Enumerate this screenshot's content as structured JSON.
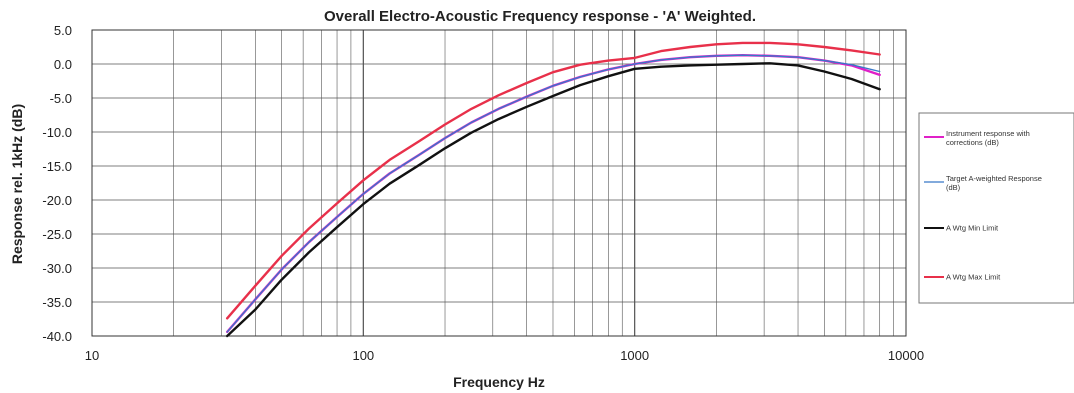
{
  "chart_data": {
    "type": "line",
    "title": "Overall Electro-Acoustic Frequency response - 'A' Weighted.",
    "xlabel": "Frequency Hz",
    "ylabel": "Response rel. 1kHz (dB)",
    "x_scale": "log",
    "xlim": [
      10,
      10000
    ],
    "ylim": [
      -40,
      5
    ],
    "x_ticks": [
      10,
      100,
      1000,
      10000
    ],
    "x_tick_labels": [
      "10",
      "100",
      "1000",
      "10000"
    ],
    "y_ticks": [
      5,
      0,
      -5,
      -10,
      -15,
      -20,
      -25,
      -30,
      -35,
      -40
    ],
    "y_tick_labels": [
      "5.0",
      "0.0",
      "-5.0",
      "-10.0",
      "-15.0",
      "-20.0",
      "-25.0",
      "-30.0",
      "-35.0",
      "-40.0"
    ],
    "grid": true,
    "legend_position": "right",
    "x": [
      31.5,
      40,
      50,
      63,
      80,
      100,
      125,
      160,
      200,
      250,
      315,
      400,
      500,
      630,
      800,
      1000,
      1250,
      1600,
      2000,
      2500,
      3150,
      4000,
      5000,
      6300,
      8000
    ],
    "series": [
      {
        "name": "Instrument response with corrections (dB)",
        "color": "#e020c8",
        "values": [
          -39.4,
          -34.6,
          -30.2,
          -26.2,
          -22.5,
          -19.1,
          -16.1,
          -13.4,
          -10.9,
          -8.6,
          -6.6,
          -4.8,
          -3.2,
          -1.9,
          -0.8,
          0.0,
          0.6,
          1.0,
          1.2,
          1.3,
          1.2,
          1.0,
          0.5,
          -0.2,
          -1.6
        ]
      },
      {
        "name": "Target A-weighted Response (dB)",
        "color": "#3878c8",
        "values": [
          -39.4,
          -34.6,
          -30.2,
          -26.2,
          -22.5,
          -19.1,
          -16.1,
          -13.4,
          -10.9,
          -8.6,
          -6.6,
          -4.8,
          -3.2,
          -1.9,
          -0.8,
          0.0,
          0.6,
          1.0,
          1.2,
          1.3,
          1.2,
          1.0,
          0.5,
          -0.1,
          -1.1
        ]
      },
      {
        "name": "A Wtg Min Limit",
        "color": "#111111",
        "values": [
          -40.0,
          -36.1,
          -31.7,
          -27.7,
          -24.0,
          -20.6,
          -17.6,
          -14.9,
          -12.4,
          -10.1,
          -8.1,
          -6.3,
          -4.7,
          -3.1,
          -1.8,
          -0.7,
          -0.4,
          -0.2,
          -0.1,
          0.0,
          0.1,
          -0.2,
          -1.1,
          -2.2,
          -3.7
        ]
      },
      {
        "name": "A Wtg Max Limit",
        "color": "#e8304a",
        "values": [
          -37.4,
          -32.6,
          -28.2,
          -24.2,
          -20.5,
          -17.1,
          -14.1,
          -11.4,
          -8.9,
          -6.6,
          -4.6,
          -2.8,
          -1.2,
          -0.1,
          0.5,
          0.9,
          1.9,
          2.5,
          2.9,
          3.1,
          3.1,
          2.9,
          2.5,
          2.0,
          1.4
        ]
      }
    ]
  }
}
